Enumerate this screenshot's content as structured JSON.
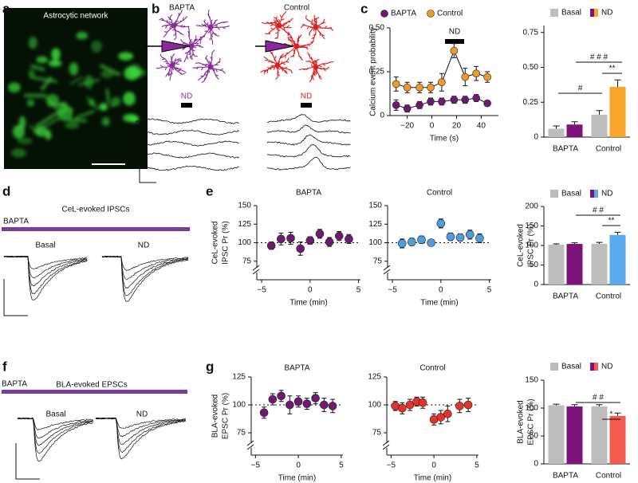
{
  "panel_labels": [
    "a",
    "b",
    "c",
    "d",
    "e",
    "f",
    "g"
  ],
  "panel_a": {
    "title": "Astrocytic network"
  },
  "panel_b": {
    "conditions": [
      "BAPTA",
      "Control"
    ],
    "stimulus": "ND"
  },
  "panel_d": {
    "title": "CeL-evoked IPSCs",
    "condition": "BAPTA",
    "traces": [
      "Basal",
      "ND"
    ]
  },
  "panel_f": {
    "title": "BLA-evoked EPSCs",
    "condition": "BAPTA",
    "traces": [
      "Basal",
      "ND"
    ]
  },
  "chart_data": [
    {
      "type": "line",
      "x_label": "Time (s)",
      "y_label": "Calcium event probability",
      "annotation": "ND",
      "x": [
        -29,
        -20,
        -10,
        -1,
        8,
        18,
        27,
        36,
        45
      ],
      "series": [
        {
          "name": "BAPTA",
          "color": "#6e1a72",
          "values": [
            0.06,
            0.04,
            0.06,
            0.08,
            0.08,
            0.09,
            0.09,
            0.1,
            0.07
          ],
          "errors": [
            0.03,
            0.02,
            0.02,
            0.02,
            0.02,
            0.02,
            0.02,
            0.02,
            0.01
          ]
        },
        {
          "name": "Control",
          "color": "#f39a26",
          "values": [
            0.18,
            0.16,
            0.16,
            0.16,
            0.19,
            0.37,
            0.22,
            0.24,
            0.22
          ],
          "errors": [
            0.04,
            0.03,
            0.03,
            0.03,
            0.05,
            0.04,
            0.05,
            0.04,
            0.03
          ]
        }
      ],
      "xlim": [
        -34,
        54
      ],
      "xticks": [
        {
          "value": -20,
          "label": "−20"
        },
        0,
        20,
        40
      ],
      "ylim": [
        0,
        0.5
      ],
      "yticks": [
        0,
        0.25,
        {
          "value": 0.5,
          "label": "0.50"
        }
      ]
    },
    {
      "type": "bar",
      "categories": [
        "BAPTA",
        "Control"
      ],
      "series": [
        {
          "name": "Basal",
          "color": "#bdbdbd",
          "values": [
            0.06,
            0.16
          ],
          "errors": [
            0.02,
            0.03
          ]
        },
        {
          "name": "ND",
          "colors": [
            "#7b137b",
            "#f7a62b"
          ],
          "values": [
            0.09,
            0.36
          ],
          "errors": [
            0.02,
            0.05
          ]
        }
      ],
      "ylim": [
        0,
        0.8
      ],
      "yticks": [
        0,
        0.25,
        {
          "value": 0.5,
          "label": "0.50"
        },
        0.75
      ],
      "significance": [
        "#",
        "# # #",
        "**"
      ]
    },
    {
      "type": "scatter",
      "title": "BAPTA",
      "x_label": "Time (min)",
      "y_label": [
        "CeL-evoked",
        "IPSC Pr (%)"
      ],
      "color": "#6e1a72",
      "x": [
        -4,
        -3,
        -2,
        -1,
        0,
        1,
        2,
        3,
        4
      ],
      "values": [
        96,
        105,
        106,
        92,
        103,
        112,
        101,
        109,
        105
      ],
      "errors": [
        5,
        8,
        8,
        9,
        5,
        6,
        6,
        6,
        6
      ],
      "xlim": [
        -5.5,
        5.2
      ],
      "xticks": [
        {
          "value": -5,
          "label": "−5"
        },
        0,
        5
      ],
      "ylim": [
        50,
        150
      ],
      "yticks": [
        75,
        100,
        125,
        150
      ],
      "reference_line": 100,
      "y_axis_break": true
    },
    {
      "type": "scatter",
      "title": "Control",
      "x_label": "Time (min)",
      "color": "#4d9de0",
      "x": [
        -4,
        -3,
        -2,
        -1,
        0,
        1,
        2,
        3,
        4
      ],
      "values": [
        99,
        101,
        104,
        100,
        126,
        108,
        107,
        111,
        106
      ],
      "errors": [
        6,
        5,
        5,
        4,
        6,
        5,
        5,
        6,
        6
      ],
      "xlim": [
        -5.5,
        5.2
      ],
      "xticks": [
        {
          "value": -5,
          "label": "−5"
        },
        0,
        5
      ],
      "ylim": [
        50,
        150
      ],
      "yticks": [
        75,
        100,
        125,
        150
      ],
      "reference_line": 100,
      "y_axis_break": true
    },
    {
      "type": "bar",
      "categories": [
        "BAPTA",
        "Control"
      ],
      "y_label": [
        "CeL-evoked",
        "IPSC Pr (%)"
      ],
      "series": [
        {
          "name": "Basal",
          "color": "#bdbdbd",
          "values": [
            102,
            104
          ],
          "errors": [
            2,
            4
          ]
        },
        {
          "name": "ND",
          "colors": [
            "#7b137b",
            "#5aaaf0"
          ],
          "values": [
            104,
            127
          ],
          "errors": [
            3,
            7
          ]
        }
      ],
      "ylim": [
        0,
        200
      ],
      "yticks": [
        0,
        50,
        100,
        150,
        200
      ],
      "significance": [
        "# #",
        "**"
      ]
    },
    {
      "type": "scatter",
      "title": "BAPTA",
      "x_label": "Time (min)",
      "y_label": [
        "BLA-evoked",
        "EPSC Pr (%)"
      ],
      "color": "#6e1a72",
      "x": [
        -4,
        -3,
        -2,
        -1,
        0,
        1,
        2,
        3,
        4
      ],
      "values": [
        93,
        105,
        108,
        100,
        103,
        101,
        106,
        100,
        99
      ],
      "errors": [
        5,
        5,
        5,
        8,
        5,
        5,
        5,
        6,
        6
      ],
      "xlim": [
        -5.5,
        5.2
      ],
      "xticks": [
        {
          "value": -5,
          "label": "−5"
        },
        0,
        5
      ],
      "ylim": [
        55,
        125
      ],
      "yticks": [
        75,
        100,
        125
      ],
      "reference_line": 100,
      "y_axis_break": true
    },
    {
      "type": "scatter",
      "title": "Control",
      "x_label": "Time (min)",
      "color": "#e8312a",
      "x": [
        -4.5,
        -3.7,
        -2.8,
        -2,
        -1.3,
        0,
        0.8,
        1.6,
        3,
        4
      ],
      "values": [
        99,
        97,
        100,
        103,
        102,
        87,
        89,
        92,
        99,
        100
      ],
      "errors": [
        4,
        5,
        5,
        4,
        5,
        5,
        6,
        7,
        6,
        6
      ],
      "xlim": [
        -5.5,
        5.2
      ],
      "xticks": [
        {
          "value": -5,
          "label": "−5"
        },
        0,
        5
      ],
      "ylim": [
        55,
        125
      ],
      "yticks": [
        75,
        100,
        125
      ],
      "reference_line": 100,
      "y_axis_break": true
    },
    {
      "type": "bar",
      "categories": [
        "BAPTA",
        "Control"
      ],
      "y_label": [
        "BLA-evoked",
        "EPSC Pr (%)"
      ],
      "series": [
        {
          "name": "Basal",
          "color": "#bdbdbd",
          "values": [
            105,
            103
          ],
          "errors": [
            2,
            3
          ]
        },
        {
          "name": "ND",
          "colors": [
            "#7b137b",
            "#f45b50"
          ],
          "values": [
            103,
            86
          ],
          "errors": [
            3,
            5
          ]
        }
      ],
      "ylim": [
        0,
        150
      ],
      "yticks": [
        0,
        50,
        100,
        150
      ],
      "significance": [
        "# #",
        "*"
      ]
    }
  ]
}
